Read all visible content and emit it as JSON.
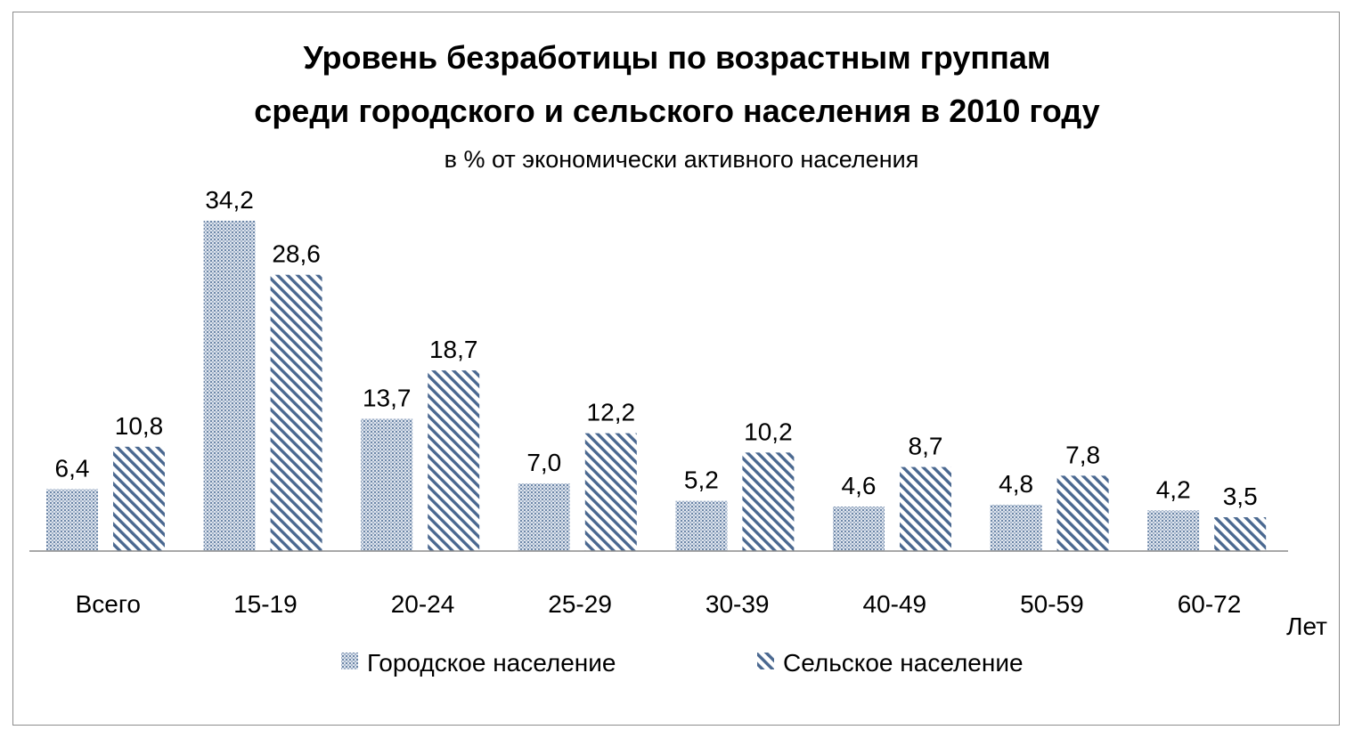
{
  "chart_data": {
    "type": "bar",
    "title_line1": "Уровень безработицы по возрастным группам",
    "title_line2": "среди городского и сельского населения в 2010 году",
    "subtitle": "в % от экономически активного населения",
    "xlabel": "Лет",
    "categories": [
      "Всего",
      "15-19",
      "20-24",
      "25-29",
      "30-39",
      "40-49",
      "50-59",
      "60-72"
    ],
    "series": [
      {
        "name": "Городское население",
        "values": [
          6.4,
          34.2,
          13.7,
          7.0,
          5.2,
          4.6,
          4.8,
          4.2
        ],
        "labels": [
          "6,4",
          "34,2",
          "13,7",
          "7,0",
          "5,2",
          "4,6",
          "4,8",
          "4,2"
        ],
        "color": "#4a6890",
        "pattern": "dotted"
      },
      {
        "name": "Сельское население",
        "values": [
          10.8,
          28.6,
          18.7,
          12.2,
          10.2,
          8.7,
          7.8,
          3.5
        ],
        "labels": [
          "10,8",
          "28,6",
          "18,7",
          "12,2",
          "10,2",
          "8,7",
          "7,8",
          "3,5"
        ],
        "color": "#4a6890",
        "pattern": "diagonal-stripes"
      }
    ],
    "legend_position": "bottom",
    "grid": false
  }
}
